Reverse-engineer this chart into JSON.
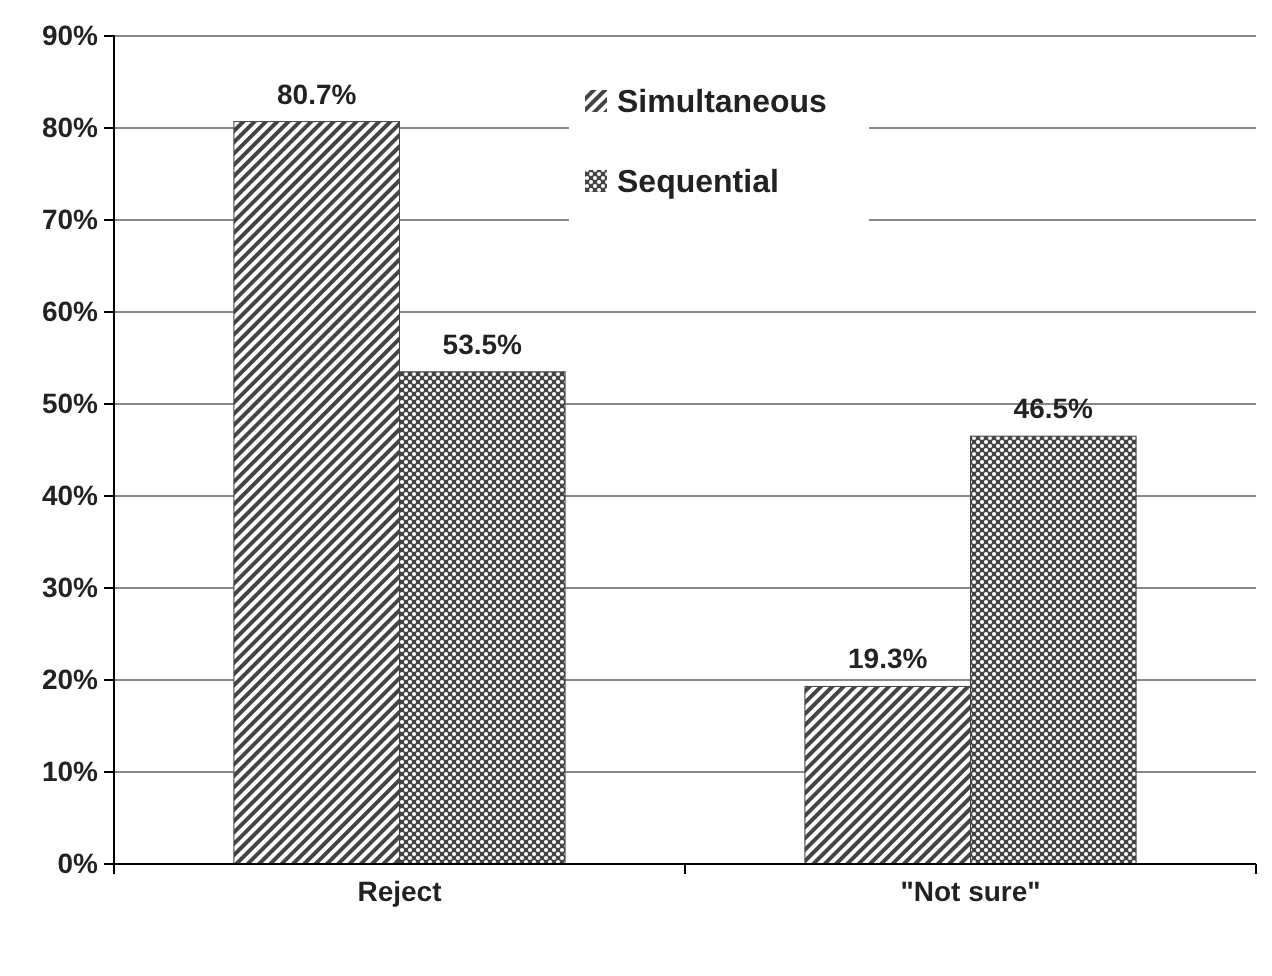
{
  "chart_data": {
    "type": "bar",
    "categories": [
      "Reject",
      "\"Not sure\""
    ],
    "series": [
      {
        "name": "Simultaneous",
        "color": "#444444",
        "values": [
          80.7,
          19.3
        ]
      },
      {
        "name": "Sequential",
        "color": "#444444",
        "values": [
          53.5,
          46.5
        ]
      }
    ],
    "ylim": [
      0,
      90
    ],
    "yticks": [
      {
        "value": 0,
        "label": "0%"
      },
      {
        "value": 10,
        "label": "10%"
      },
      {
        "value": 20,
        "label": "20%"
      },
      {
        "value": 30,
        "label": "30%"
      },
      {
        "value": 40,
        "label": "40%"
      },
      {
        "value": 50,
        "label": "50%"
      },
      {
        "value": 60,
        "label": "60%"
      },
      {
        "value": 70,
        "label": "70%"
      },
      {
        "value": 80,
        "label": "80%"
      },
      {
        "value": 90,
        "label": "90%"
      }
    ],
    "value_labels": [
      [
        "80.7%",
        "19.3%"
      ],
      [
        "53.5%",
        "46.5%"
      ]
    ],
    "grid": "y",
    "legend": "top"
  }
}
